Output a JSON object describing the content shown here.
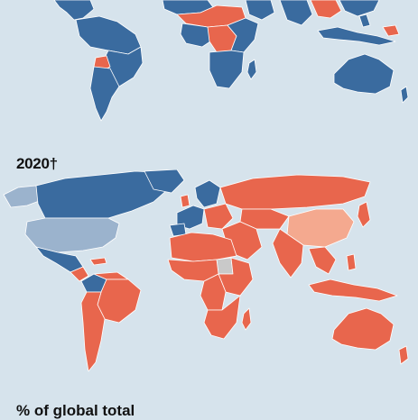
{
  "colors": {
    "background": "#d6e3ec",
    "blue": "#3a6b9f",
    "red": "#e8664d",
    "light_blue": "#9bb3cd",
    "light_red": "#f4a98f",
    "grey": "#c9c9c9",
    "border": "#ffffff"
  },
  "panels": {
    "bottom": {
      "year_label": "2020†"
    }
  },
  "legend": {
    "title": "% of global total"
  }
}
